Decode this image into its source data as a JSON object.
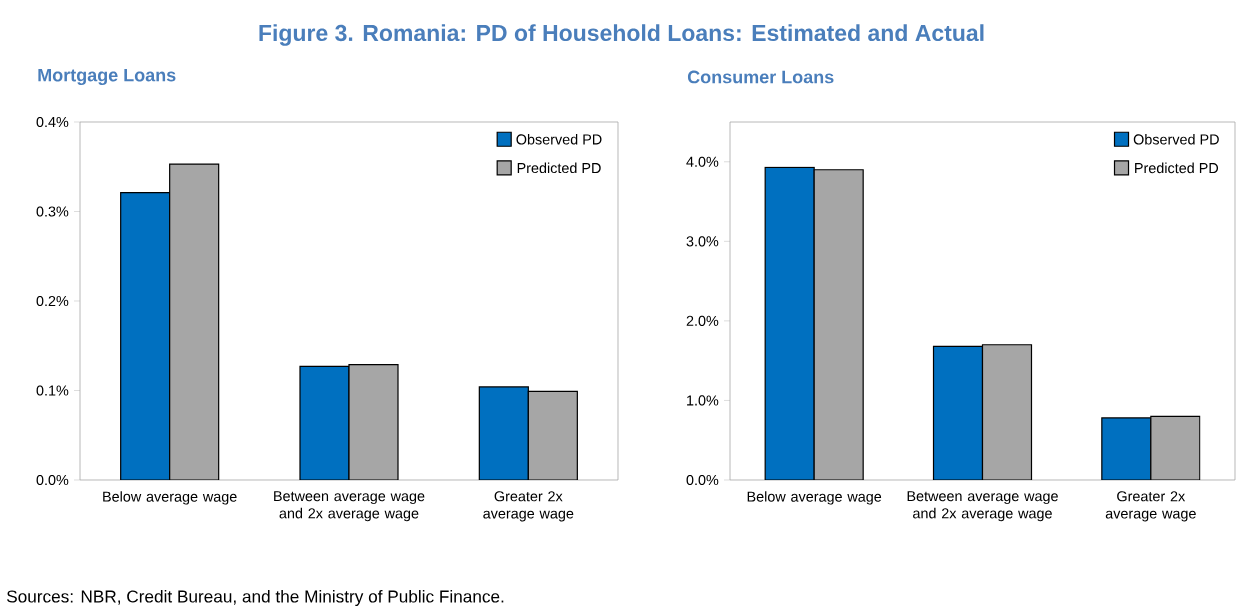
{
  "chart_data": [
    {
      "type": "bar",
      "title": "Figure 3. Romania: PD of Household Loans: Estimated and Actual",
      "subtitle": "Mortgage Loans",
      "categories": [
        "Below average wage",
        "Between average wage and 2x average wage",
        "Greater 2x average wage"
      ],
      "series": [
        {
          "name": "Observed PD",
          "color": "#0070c0",
          "values": [
            0.321,
            0.127,
            0.104
          ]
        },
        {
          "name": "Predicted PD",
          "color": "#a6a6a6",
          "values": [
            0.353,
            0.129,
            0.099
          ]
        }
      ],
      "ylim": [
        0,
        0.4
      ],
      "yticks": [
        {
          "value": 0,
          "label": "0.0%"
        },
        {
          "value": 0.1,
          "label": "0.1%"
        },
        {
          "value": 0.2,
          "label": "0.2%"
        },
        {
          "value": 0.3,
          "label": "0.3%"
        },
        {
          "value": 0.4,
          "label": "0.4%"
        }
      ],
      "legend": "top right",
      "grid": false,
      "annotations": [
        "Sources: NBR, Credit Bureau, and the Ministry of Public Finance."
      ]
    },
    {
      "type": "bar",
      "subtitle": "Consumer Loans",
      "categories": [
        "Below average wage",
        "Between average wage and 2x average wage",
        "Greater 2x average wage"
      ],
      "series": [
        {
          "name": "Observed PD",
          "color": "#0070c0",
          "values": [
            3.93,
            1.68,
            0.78
          ]
        },
        {
          "name": "Predicted PD",
          "color": "#a6a6a6",
          "values": [
            3.9,
            1.7,
            0.8
          ]
        }
      ],
      "ylim": [
        0,
        4.5
      ],
      "yticks": [
        {
          "value": 0,
          "label": "0.0%"
        },
        {
          "value": 1,
          "label": "1.0%"
        },
        {
          "value": 2,
          "label": "2.0%"
        },
        {
          "value": 3,
          "label": "3.0%"
        },
        {
          "value": 4,
          "label": "4.0%"
        }
      ],
      "legend": "top right",
      "grid": false
    }
  ]
}
